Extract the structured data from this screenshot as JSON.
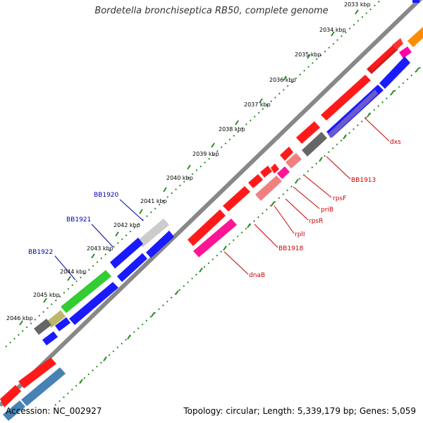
{
  "title": "Bordetella bronchiseptica RB50, complete genome",
  "footer": {
    "accession": "Accession: NC_002927",
    "summary": "Topology: circular; Length: 5,339,179 bp; Genes: 5,059"
  },
  "ticks": [
    "2033 kbp",
    "2034 kbp",
    "2035 kbp",
    "2036 kbp",
    "2037 kbp",
    "2038 kbp",
    "2039 kbp",
    "2040 kbp",
    "2041 kbp",
    "2042 kbp",
    "2043 kbp",
    "2044 kbp",
    "2045 kbp",
    "2046 kbp"
  ],
  "genes": {
    "dxs": "dxs",
    "BB1913": "BB1913",
    "rpsF": "rpsF",
    "priB": "priB",
    "rpsR": "rpsR",
    "rplI": "rplI",
    "BB1918": "BB1918",
    "dnaB": "dnaB",
    "BB1920": "BB1920",
    "BB1921": "BB1921",
    "BB1922": "BB1922"
  },
  "colors": {
    "forward": "#ff0000",
    "reverse": "#0000ee",
    "rna": "#ff1493",
    "grey": "#666666",
    "lightgrey": "#cccccc",
    "green": "#33cc33",
    "khaki": "#bdb76b",
    "steel": "#4682b4",
    "orange": "#ff8c00",
    "lavender": "#6a5acd",
    "pink": "#f08080",
    "redLabel": "#cc0000",
    "blueLabel": "#0000aa"
  }
}
